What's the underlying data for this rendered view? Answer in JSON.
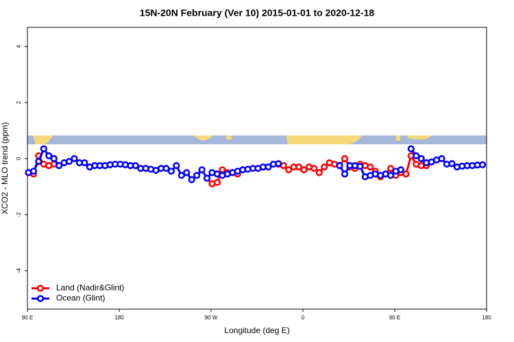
{
  "chart_data": {
    "type": "line",
    "title": "15N-20N February (Ver 10)   2015-01-01 to 2020-12-18",
    "x_label": "Longitude (deg E)",
    "y_label": "XCO2 - MLO trend (ppm)",
    "xlim": [
      90,
      540
    ],
    "ylim": [
      -5.37,
      4.68
    ],
    "xticks": [
      {
        "value": 90,
        "label": "90 E"
      },
      {
        "value": 180,
        "label": "180"
      },
      {
        "value": 270,
        "label": "90 W"
      },
      {
        "value": 360,
        "label": "0"
      },
      {
        "value": 450,
        "label": "90 E"
      },
      {
        "value": 540,
        "label": "180"
      }
    ],
    "yticks": [
      -4,
      -2,
      0,
      2,
      4
    ],
    "legend": "bottomleft",
    "series": [
      {
        "name": "Land (Nadir&Glint)",
        "color": "#ff0000",
        "x": [
          91,
          96,
          101,
          106,
          111,
          116,
          191,
          266,
          271,
          276,
          281,
          286,
          291,
          296,
          316,
          336,
          341,
          346,
          351,
          356,
          361,
          366,
          371,
          376,
          381,
          386,
          391,
          396,
          401,
          406,
          411,
          416,
          421,
          426,
          431,
          436,
          441,
          446,
          451,
          456,
          461,
          466,
          471,
          476,
          481
        ],
        "values": [
          -0.5,
          -0.55,
          0.1,
          -0.2,
          -0.25,
          -0.2,
          null,
          -0.7,
          -0.9,
          -0.85,
          -0.4,
          -0.5,
          -0.5,
          -0.55,
          null,
          -0.2,
          -0.25,
          -0.4,
          -0.3,
          -0.3,
          -0.4,
          -0.3,
          -0.35,
          -0.5,
          -0.3,
          -0.15,
          -0.2,
          -0.25,
          0.0,
          -0.3,
          -0.35,
          -0.2,
          -0.25,
          -0.3,
          -0.45,
          -0.65,
          -0.55,
          -0.35,
          -0.6,
          -0.5,
          -0.55,
          0.1,
          -0.2,
          -0.25,
          -0.25
        ]
      },
      {
        "name": "Ocean (Glint)",
        "color": "#0000ff",
        "x": [
          91,
          96,
          101,
          106,
          111,
          116,
          121,
          126,
          131,
          136,
          141,
          146,
          151,
          156,
          161,
          166,
          171,
          176,
          181,
          186,
          191,
          196,
          201,
          206,
          211,
          216,
          221,
          226,
          231,
          236,
          241,
          246,
          251,
          256,
          261,
          266,
          271,
          276,
          281,
          286,
          291,
          296,
          301,
          306,
          311,
          316,
          321,
          326,
          331,
          336,
          366,
          396,
          401,
          406,
          411,
          416,
          421,
          426,
          431,
          436,
          441,
          446,
          451,
          456,
          461,
          466,
          471,
          476,
          481,
          486,
          491,
          496,
          501,
          506,
          511,
          516,
          521,
          526,
          531,
          536
        ],
        "values": [
          -0.5,
          -0.45,
          -0.1,
          0.35,
          0.1,
          0.0,
          -0.25,
          -0.15,
          -0.1,
          0.0,
          -0.15,
          -0.15,
          -0.3,
          -0.25,
          -0.25,
          -0.25,
          -0.22,
          -0.2,
          -0.2,
          -0.22,
          -0.25,
          -0.25,
          -0.35,
          -0.35,
          -0.38,
          -0.42,
          -0.35,
          -0.35,
          -0.45,
          -0.25,
          -0.6,
          -0.5,
          -0.75,
          -0.6,
          -0.4,
          -0.7,
          -0.5,
          -0.55,
          -0.6,
          -0.55,
          -0.5,
          -0.45,
          -0.4,
          -0.38,
          -0.35,
          -0.35,
          -0.3,
          -0.3,
          -0.2,
          -0.18,
          null,
          -0.25,
          -0.55,
          -0.25,
          -0.25,
          -0.28,
          -0.65,
          -0.6,
          -0.55,
          -0.6,
          -0.55,
          -0.6,
          -0.45,
          -0.4,
          null,
          0.35,
          0.1,
          0.0,
          -0.15,
          -0.12,
          -0.05,
          0.0,
          -0.2,
          -0.18,
          -0.3,
          -0.27,
          -0.25,
          -0.25,
          -0.23,
          -0.22
        ]
      }
    ]
  }
}
